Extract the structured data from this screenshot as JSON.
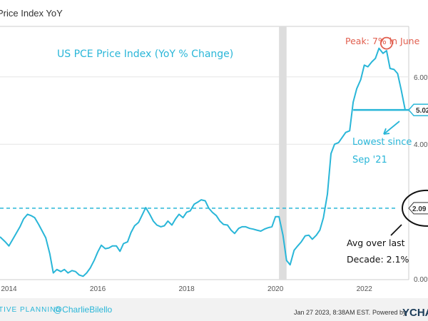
{
  "chart_data": {
    "type": "line",
    "title": "US PCE Price Index (YoY % Change)",
    "series_label": "Price Index YoY",
    "ylim": [
      -0.02,
      7.5
    ],
    "y_ticks": [
      {
        "value": 0,
        "label": "0.00%"
      },
      {
        "value": 4,
        "label": "4.00%"
      },
      {
        "value": 6,
        "label": "6.00%"
      }
    ],
    "x_ticks": [
      {
        "value": 2014,
        "label": "2014"
      },
      {
        "value": 2016,
        "label": "2016"
      },
      {
        "value": 2018,
        "label": "2018"
      },
      {
        "value": 2020,
        "label": "2020"
      },
      {
        "value": 2022,
        "label": "2022"
      }
    ],
    "xlim": [
      2013.8,
      2023.0
    ],
    "series": [
      {
        "name": "US PCE Price Index YoY",
        "x": [
          2013.8,
          2013.92,
          2014.0,
          2014.12,
          2014.25,
          2014.33,
          2014.42,
          2014.5,
          2014.58,
          2014.67,
          2014.75,
          2014.83,
          2014.92,
          2015.0,
          2015.08,
          2015.17,
          2015.25,
          2015.33,
          2015.42,
          2015.5,
          2015.58,
          2015.67,
          2015.75,
          2015.83,
          2015.92,
          2016.0,
          2016.08,
          2016.17,
          2016.25,
          2016.33,
          2016.42,
          2016.5,
          2016.58,
          2016.67,
          2016.75,
          2016.83,
          2016.92,
          2017.0,
          2017.08,
          2017.17,
          2017.25,
          2017.33,
          2017.42,
          2017.5,
          2017.58,
          2017.67,
          2017.75,
          2017.83,
          2017.92,
          2018.0,
          2018.08,
          2018.17,
          2018.25,
          2018.33,
          2018.42,
          2018.5,
          2018.58,
          2018.67,
          2018.75,
          2018.83,
          2018.92,
          2019.0,
          2019.08,
          2019.17,
          2019.25,
          2019.33,
          2019.42,
          2019.5,
          2019.58,
          2019.67,
          2019.75,
          2019.83,
          2019.92,
          2020.0,
          2020.08,
          2020.17,
          2020.25,
          2020.33,
          2020.42,
          2020.5,
          2020.58,
          2020.67,
          2020.75,
          2020.83,
          2020.92,
          2021.0,
          2021.08,
          2021.17,
          2021.25,
          2021.33,
          2021.42,
          2021.5,
          2021.58,
          2021.67,
          2021.75,
          2021.83,
          2021.92,
          2022.0,
          2022.08,
          2022.17,
          2022.25,
          2022.33,
          2022.42,
          2022.5,
          2022.58,
          2022.67,
          2022.75,
          2022.83,
          2022.92
        ],
        "values": [
          1.25,
          1.1,
          0.98,
          1.25,
          1.55,
          1.78,
          1.92,
          1.88,
          1.82,
          1.62,
          1.42,
          1.22,
          0.75,
          0.18,
          0.28,
          0.22,
          0.28,
          0.18,
          0.25,
          0.22,
          0.12,
          0.08,
          0.18,
          0.32,
          0.55,
          0.8,
          1.0,
          0.9,
          0.92,
          0.98,
          0.98,
          0.82,
          1.05,
          1.1,
          1.38,
          1.58,
          1.68,
          1.9,
          2.12,
          1.92,
          1.72,
          1.6,
          1.55,
          1.58,
          1.72,
          1.6,
          1.78,
          1.92,
          1.82,
          1.98,
          2.02,
          2.22,
          2.28,
          2.35,
          2.32,
          2.1,
          1.98,
          1.88,
          1.72,
          1.62,
          1.6,
          1.45,
          1.35,
          1.5,
          1.55,
          1.55,
          1.5,
          1.48,
          1.45,
          1.42,
          1.48,
          1.52,
          1.55,
          1.85,
          1.85,
          1.3,
          0.55,
          0.42,
          0.85,
          0.98,
          1.1,
          1.28,
          1.3,
          1.18,
          1.3,
          1.45,
          1.82,
          2.52,
          3.72,
          4.0,
          4.05,
          4.2,
          4.35,
          4.4,
          5.25,
          5.65,
          5.92,
          6.35,
          6.3,
          6.45,
          6.55,
          6.85,
          6.7,
          6.78,
          6.25,
          6.22,
          6.1,
          5.62,
          5.02
        ]
      }
    ],
    "average": {
      "value": 2.1,
      "badge": "2.09"
    },
    "latest": {
      "value": 5.02,
      "badge": "5.02"
    },
    "peak": {
      "x": 2022.5,
      "value": 7.0
    },
    "shaded_region": [
      2020.08,
      2020.25
    ]
  },
  "annotations": {
    "title": "US PCE Price Index (YoY % Change)",
    "peak": "Peak: 7% in June",
    "lowest_line1": "Lowest since",
    "lowest_line2": "Sep '21",
    "avg_line1": "Avg over last",
    "avg_line2": "Decade: 2.1%"
  },
  "footer": {
    "brand_fragment": "TIVE PLANNING",
    "handle": "@CharlieBilello",
    "timestamp": "Jan 27 2023, 8:38AM EST.",
    "powered_by": "Powered by",
    "brand_logo": "YCHA"
  },
  "colors": {
    "line": "#29b6d8",
    "peak_marker": "#e15f4f",
    "shading": "#dddddd",
    "footer_bg": "#f2f2f2",
    "logo": "#1c3d5a"
  }
}
